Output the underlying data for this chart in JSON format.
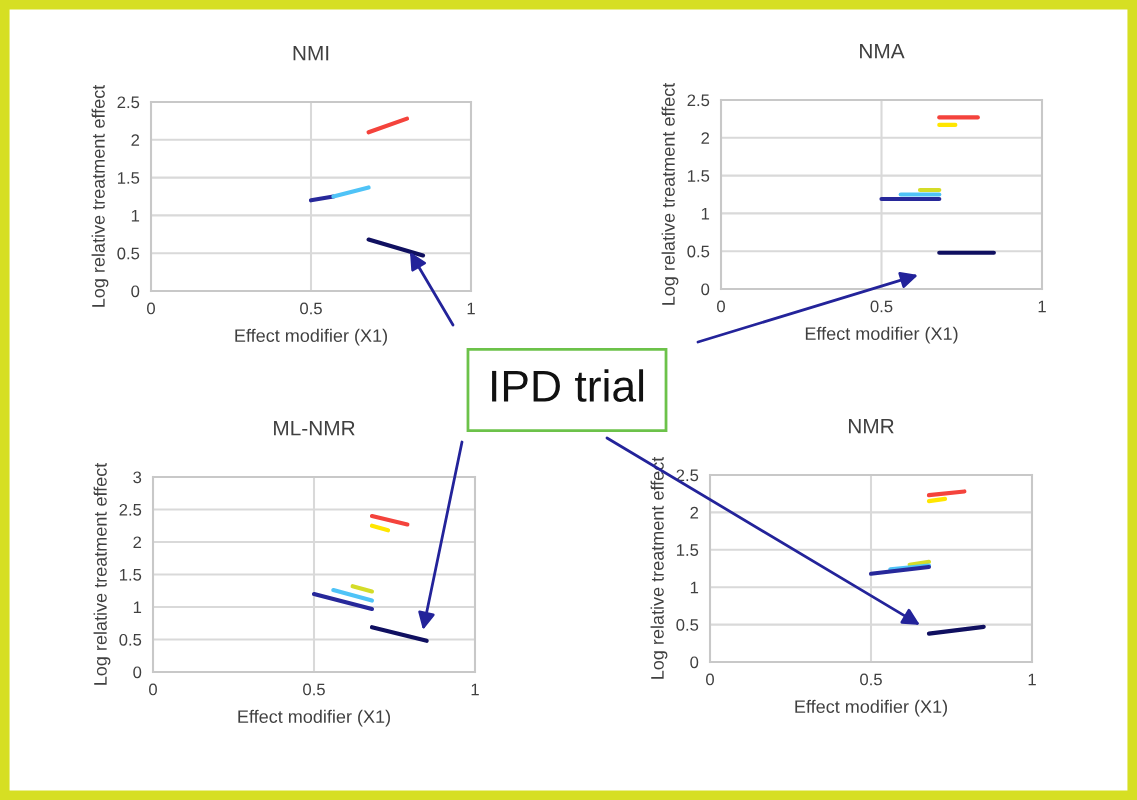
{
  "chart_data": [
    {
      "type": "line",
      "title": "NMI",
      "xlabel": "Effect modifier (X1)",
      "ylabel": "Log relative treatment effect",
      "xlim": [
        0,
        1
      ],
      "xticks": [
        0,
        0.5,
        1
      ],
      "ylim": [
        0,
        2.5
      ],
      "yticks": [
        0,
        0.5,
        1,
        1.5,
        2,
        2.5
      ],
      "grid": true,
      "annotations": [
        "IPD trial"
      ],
      "series": [
        {
          "color": "#f4433c",
          "x": [
            0.68,
            0.8
          ],
          "values": [
            2.1,
            2.28
          ]
        },
        {
          "color": "#27289a",
          "x": [
            0.5,
            0.57
          ],
          "values": [
            1.2,
            1.25
          ]
        },
        {
          "color": "#4fc3f7",
          "x": [
            0.57,
            0.68
          ],
          "values": [
            1.25,
            1.37
          ]
        },
        {
          "color": "#101060",
          "x": [
            0.68,
            0.85
          ],
          "values": [
            0.68,
            0.47
          ]
        }
      ]
    },
    {
      "type": "line",
      "title": "NMA",
      "xlabel": "Effect modifier (X1)",
      "ylabel": "Log relative treatment effect",
      "xlim": [
        0,
        1
      ],
      "xticks": [
        0,
        0.5,
        1
      ],
      "ylim": [
        0,
        2.5
      ],
      "yticks": [
        0,
        0.5,
        1,
        1.5,
        2,
        2.5
      ],
      "grid": true,
      "series": [
        {
          "color": "#f4433c",
          "x": [
            0.68,
            0.8
          ],
          "values": [
            2.27,
            2.27
          ]
        },
        {
          "color": "#ffe600",
          "x": [
            0.68,
            0.73
          ],
          "values": [
            2.17,
            2.17
          ]
        },
        {
          "color": "#d4dc28",
          "x": [
            0.62,
            0.68
          ],
          "values": [
            1.31,
            1.31
          ]
        },
        {
          "color": "#4fc3f7",
          "x": [
            0.56,
            0.68
          ],
          "values": [
            1.25,
            1.25
          ]
        },
        {
          "color": "#27289a",
          "x": [
            0.5,
            0.68
          ],
          "values": [
            1.19,
            1.19
          ]
        },
        {
          "color": "#101060",
          "x": [
            0.68,
            0.85
          ],
          "values": [
            0.48,
            0.48
          ]
        }
      ]
    },
    {
      "type": "line",
      "title": "ML-NMR",
      "xlabel": "Effect modifier (X1)",
      "ylabel": "Log relative treatment effect",
      "xlim": [
        0,
        1
      ],
      "xticks": [
        0,
        0.5,
        1
      ],
      "ylim": [
        0,
        3
      ],
      "yticks": [
        0,
        0.5,
        1,
        1.5,
        2,
        2.5,
        3
      ],
      "grid": true,
      "series": [
        {
          "color": "#f4433c",
          "x": [
            0.68,
            0.79
          ],
          "values": [
            2.4,
            2.27
          ]
        },
        {
          "color": "#ffe600",
          "x": [
            0.68,
            0.73
          ],
          "values": [
            2.25,
            2.18
          ]
        },
        {
          "color": "#d4dc28",
          "x": [
            0.62,
            0.68
          ],
          "values": [
            1.32,
            1.24
          ]
        },
        {
          "color": "#4fc3f7",
          "x": [
            0.56,
            0.68
          ],
          "values": [
            1.26,
            1.1
          ]
        },
        {
          "color": "#27289a",
          "x": [
            0.5,
            0.68
          ],
          "values": [
            1.2,
            0.97
          ]
        },
        {
          "color": "#101060",
          "x": [
            0.68,
            0.85
          ],
          "values": [
            0.69,
            0.48
          ]
        }
      ]
    },
    {
      "type": "line",
      "title": "NMR",
      "xlabel": "Effect modifier (X1)",
      "ylabel": "Log relative treatment effect",
      "xlim": [
        0,
        1
      ],
      "xticks": [
        0,
        0.5,
        1
      ],
      "ylim": [
        0,
        2.5
      ],
      "yticks": [
        0,
        0.5,
        1,
        1.5,
        2,
        2.5
      ],
      "grid": true,
      "series": [
        {
          "color": "#f4433c",
          "x": [
            0.68,
            0.79
          ],
          "values": [
            2.23,
            2.28
          ]
        },
        {
          "color": "#ffe600",
          "x": [
            0.68,
            0.73
          ],
          "values": [
            2.15,
            2.18
          ]
        },
        {
          "color": "#d4dc28",
          "x": [
            0.62,
            0.68
          ],
          "values": [
            1.3,
            1.34
          ]
        },
        {
          "color": "#4fc3f7",
          "x": [
            0.56,
            0.68
          ],
          "values": [
            1.24,
            1.29
          ]
        },
        {
          "color": "#27289a",
          "x": [
            0.5,
            0.68
          ],
          "values": [
            1.18,
            1.27
          ]
        },
        {
          "color": "#101060",
          "x": [
            0.68,
            0.85
          ],
          "values": [
            0.38,
            0.47
          ]
        }
      ]
    }
  ]
}
